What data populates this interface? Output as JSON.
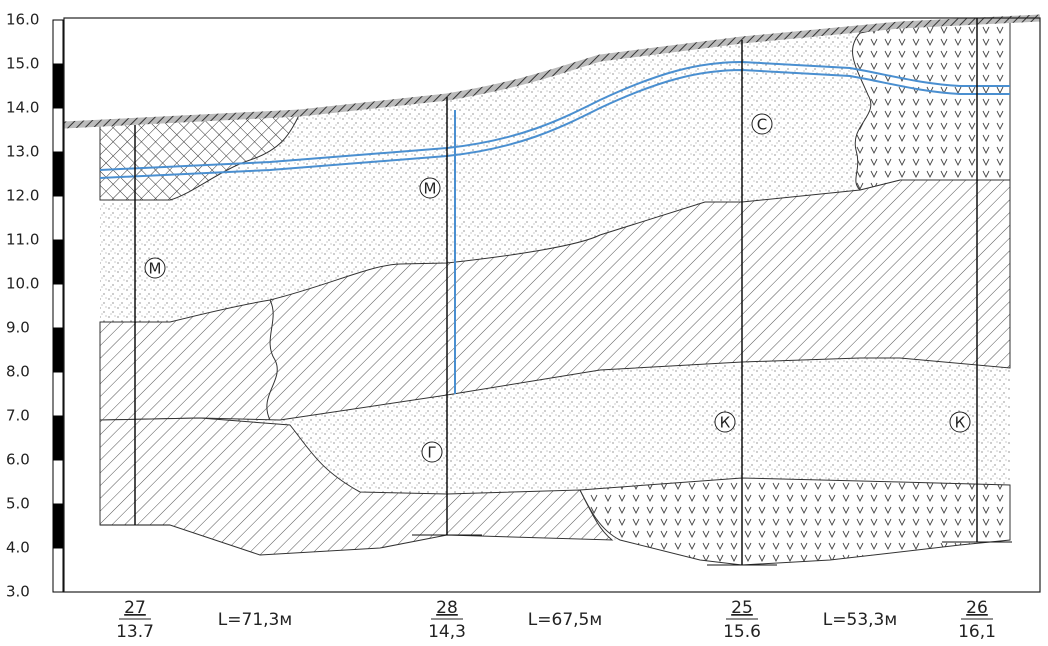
{
  "axis": {
    "labels": [
      "16.0",
      "15.0",
      "14.0",
      "13.0",
      "12.0",
      "11.0",
      "10.0",
      "9.0",
      "8.0",
      "7.0",
      "6.0",
      "5.0",
      "4.0",
      "3.0"
    ]
  },
  "boreholes": [
    {
      "number": "27",
      "elevation": "13.7"
    },
    {
      "number": "28",
      "elevation": "14,3"
    },
    {
      "number": "25",
      "elevation": "15.6"
    },
    {
      "number": "26",
      "elevation": "16,1"
    }
  ],
  "distances": [
    "L=71,3м",
    "L=67,5м",
    "L=53,3м"
  ],
  "layer_labels": [
    "М",
    "М",
    "Г",
    "С",
    "К",
    "К"
  ]
}
